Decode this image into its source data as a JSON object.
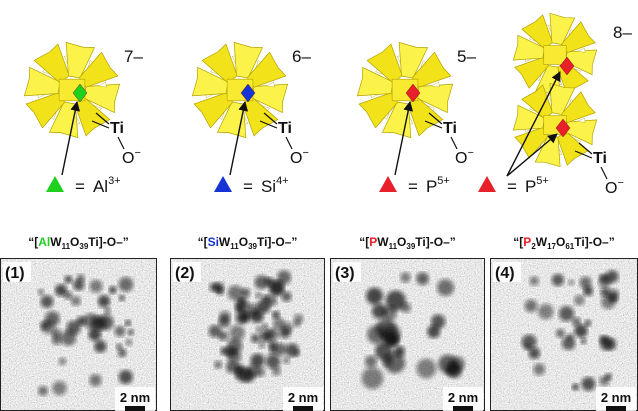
{
  "panels": [
    {
      "charge": "7–",
      "ti": "Ti",
      "oxygen": {
        "base": "O",
        "sup": "−"
      },
      "ion": {
        "eq": "=",
        "base": "Al",
        "sup": "3+"
      },
      "color": "#1fd11f",
      "title": [
        "“[",
        "Al",
        "W",
        "11",
        "O",
        "39",
        "Ti]-O–”"
      ],
      "label": "(1)",
      "scale": "2 nm"
    },
    {
      "charge": "6–",
      "ti": "Ti",
      "oxygen": {
        "base": "O",
        "sup": "−"
      },
      "ion": {
        "eq": "=",
        "base": "Si",
        "sup": "4+"
      },
      "color": "#1733d6",
      "title": [
        "“[",
        "Si",
        "W",
        "11",
        "O",
        "39",
        "Ti]-O–”"
      ],
      "label": "(2)",
      "scale": "2 nm"
    },
    {
      "charge": "5–",
      "ti": "Ti",
      "oxygen": {
        "base": "O",
        "sup": "−"
      },
      "ion": {
        "eq": "=",
        "base": "P",
        "sup": "5+"
      },
      "color": "#e8202a",
      "title": [
        "“[",
        "P",
        "W",
        "11",
        "O",
        "39",
        "Ti]-O–”"
      ],
      "label": "(3)",
      "scale": "2 nm"
    },
    {
      "charge": "8–",
      "ti": "Ti",
      "oxygen": {
        "base": "O",
        "sup": "−"
      },
      "ion": {
        "eq": "=",
        "base": "P",
        "sup": "5+"
      },
      "color": "#e8202a",
      "title": [
        "“[",
        "P",
        "2",
        "W",
        "17",
        "O",
        "61",
        "Ti]-O–”"
      ],
      "label": "(4)",
      "scale": "2 nm"
    }
  ]
}
